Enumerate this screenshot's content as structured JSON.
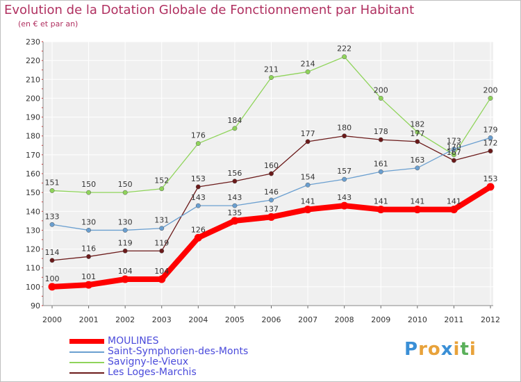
{
  "chart_data": {
    "type": "line",
    "title": "Evolution de la Dotation Globale de Fonctionnement par Habitant",
    "subtitle": "(en € et par an)",
    "xlabel": "",
    "ylabel": "",
    "ylim": [
      90,
      230
    ],
    "yticks": [
      90,
      100,
      110,
      120,
      130,
      140,
      150,
      160,
      170,
      180,
      190,
      200,
      210,
      220,
      230
    ],
    "categories": [
      "2000",
      "2001",
      "2002",
      "2003",
      "2004",
      "2005",
      "2006",
      "2007",
      "2008",
      "2009",
      "2010",
      "2011",
      "2012"
    ],
    "grid": true,
    "legend": "bottom-left",
    "series": [
      {
        "name": "MOULINES",
        "color": "#ff0000",
        "values": [
          100,
          101,
          104,
          104,
          126,
          135,
          137,
          141,
          143,
          141,
          141,
          141,
          153
        ]
      },
      {
        "name": "Saint-Symphorien-des-Monts",
        "color": "#6a9fd0",
        "values": [
          133,
          130,
          130,
          131,
          143,
          143,
          146,
          154,
          157,
          161,
          163,
          173,
          179
        ]
      },
      {
        "name": "Savigny-le-Vieux",
        "color": "#8fd45a",
        "values": [
          151,
          150,
          150,
          152,
          176,
          184,
          211,
          214,
          222,
          200,
          182,
          170,
          200
        ]
      },
      {
        "name": "Les Loges-Marchis",
        "color": "#6b1a1a",
        "values": [
          114,
          116,
          119,
          119,
          153,
          156,
          160,
          177,
          180,
          178,
          177,
          167,
          172
        ]
      }
    ]
  },
  "logo": {
    "text": "Proxiti",
    "letters": [
      "P",
      "r",
      "o",
      "x",
      "i",
      "t",
      "i"
    ],
    "colors": [
      "#3a8fd6",
      "#e8a23a",
      "#e8a23a",
      "#3a8fd6",
      "#e8a23a",
      "#5ab05a",
      "#e8a23a"
    ]
  }
}
